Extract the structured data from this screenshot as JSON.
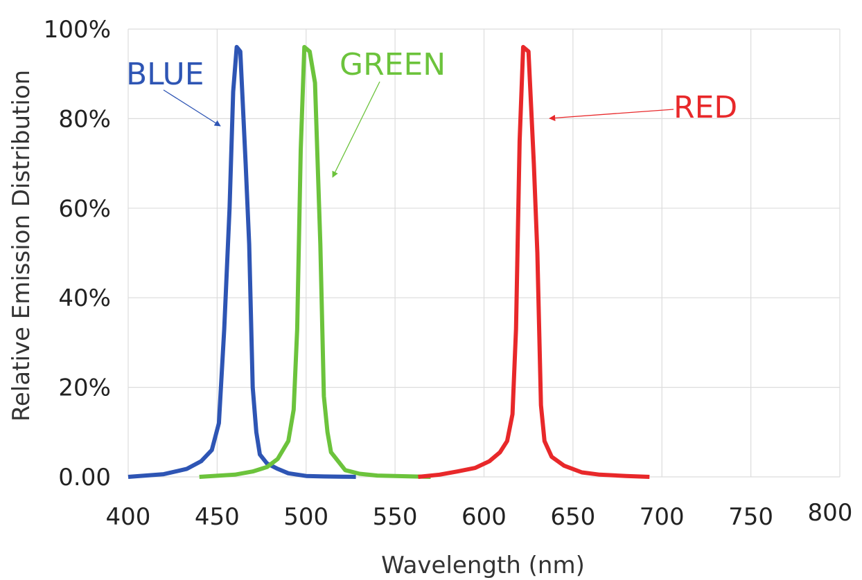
{
  "chart_data": {
    "type": "line",
    "title": "",
    "xlabel": "Wavelength (nm)",
    "ylabel": "Relative Emission Distribution",
    "xlim": [
      400,
      800
    ],
    "ylim": [
      0,
      100
    ],
    "grid": true,
    "legend": "none",
    "x_ticks": [
      "400",
      "450",
      "500",
      "550",
      "600",
      "650",
      "700",
      "750",
      "800"
    ],
    "y_ticks": [
      "0.00",
      "20%",
      "40%",
      "60%",
      "80%",
      "100%"
    ],
    "series": [
      {
        "name": "BLUE",
        "color": "#2e55b4",
        "x": [
          400,
          420,
          433,
          441,
          447,
          451,
          454,
          457,
          459,
          461,
          463,
          466,
          468,
          470,
          472,
          474,
          478,
          484,
          490,
          500,
          510,
          520,
          528
        ],
        "y": [
          0,
          0.6,
          1.8,
          3.5,
          6,
          12,
          33,
          60,
          86,
          96,
          95,
          70,
          52,
          20,
          10,
          5,
          3,
          1.8,
          0.8,
          0.2,
          0.1,
          0.05,
          0
        ]
      },
      {
        "name": "GREEN",
        "color": "#6cc33c",
        "x": [
          440,
          460,
          470,
          478,
          484,
          490,
          493,
          495,
          497,
          499,
          502,
          505,
          508,
          510,
          512,
          514,
          518,
          522,
          530,
          540,
          550,
          560,
          570
        ],
        "y": [
          0,
          0.5,
          1.2,
          2.2,
          4,
          8,
          15,
          33,
          73,
          96,
          95,
          88,
          52,
          18,
          10,
          5.5,
          3.5,
          1.5,
          0.7,
          0.3,
          0.2,
          0.1,
          0
        ]
      },
      {
        "name": "RED",
        "color": "#e8282a",
        "x": [
          563,
          575,
          585,
          595,
          603,
          609,
          613,
          616,
          618,
          620,
          622,
          625,
          628,
          630,
          632,
          634,
          638,
          645,
          655,
          665,
          680,
          693
        ],
        "y": [
          0,
          0.5,
          1.2,
          2,
          3.5,
          5.5,
          8,
          14,
          33,
          75,
          96,
          95,
          70,
          50,
          16,
          8,
          4.5,
          2.5,
          1,
          0.5,
          0.2,
          0
        ]
      }
    ],
    "annotations": [
      {
        "text": "BLUE",
        "color": "#2e55b4"
      },
      {
        "text": "GREEN",
        "color": "#6cc33c"
      },
      {
        "text": "RED",
        "color": "#e8282a"
      }
    ]
  }
}
